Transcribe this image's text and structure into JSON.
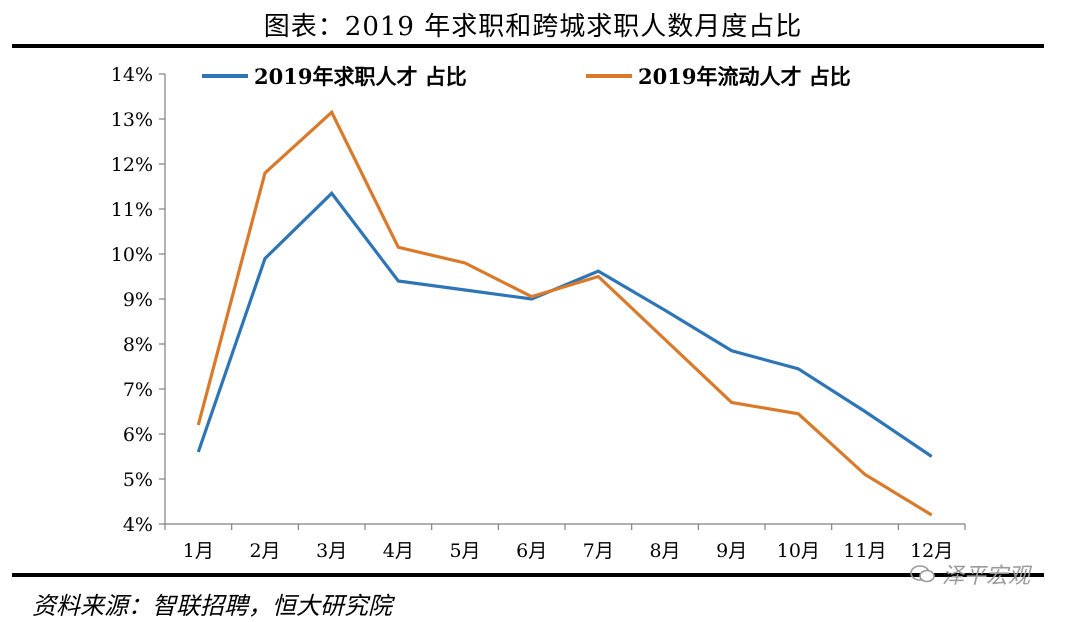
{
  "header": {
    "title": "图表：2019 年求职和跨城求职人数月度占比"
  },
  "footer": {
    "source": "资料来源：智联招聘，恒大研究院",
    "watermark": "泽平宏观"
  },
  "colors": {
    "series1": "#2e75b6",
    "series2": "#d97a2b",
    "axis": "#808080"
  },
  "chart_data": {
    "type": "line",
    "title": "",
    "xlabel": "",
    "ylabel": "",
    "categories": [
      "1月",
      "2月",
      "3月",
      "4月",
      "5月",
      "6月",
      "7月",
      "8月",
      "9月",
      "10月",
      "11月",
      "12月"
    ],
    "series": [
      {
        "name": "2019年求职人才 占比",
        "values": [
          5.6,
          9.9,
          11.35,
          9.4,
          9.2,
          9.0,
          9.62,
          8.75,
          7.85,
          7.45,
          6.5,
          5.5
        ]
      },
      {
        "name": "2019年流动人才 占比",
        "values": [
          6.2,
          11.8,
          13.15,
          10.15,
          9.8,
          9.05,
          9.5,
          8.1,
          6.7,
          6.45,
          5.1,
          4.2
        ]
      }
    ],
    "ylim": [
      4,
      14
    ],
    "yticks": [
      "4%",
      "5%",
      "6%",
      "7%",
      "8%",
      "9%",
      "10%",
      "11%",
      "12%",
      "13%",
      "14%"
    ],
    "grid": false,
    "legend": "top"
  }
}
